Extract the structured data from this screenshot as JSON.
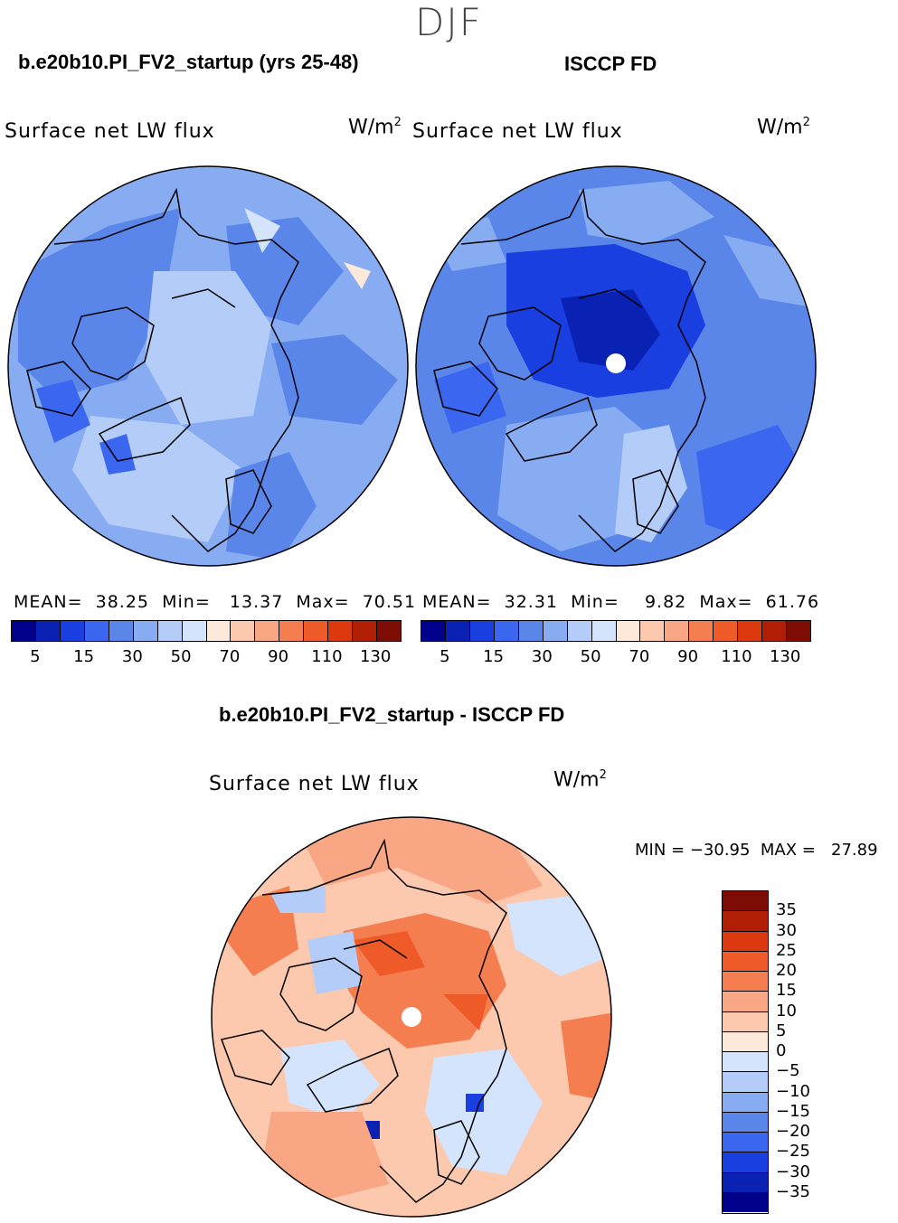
{
  "season": "DJF",
  "panels": {
    "model": {
      "title": "b.e20b10.PI_FV2_startup (yrs 25-48)",
      "variable": "Surface net LW flux",
      "units": "W/m",
      "units_sup": "2",
      "stats": {
        "mean_label": "MEAN=",
        "mean": "38.25",
        "min_label": "Min=",
        "min": "13.37",
        "max_label": "Max=",
        "max": "70.51"
      }
    },
    "obs": {
      "title": "ISCCP FD",
      "variable": "Surface net LW flux",
      "units": "W/m",
      "units_sup": "2",
      "stats": {
        "mean_label": "MEAN=",
        "mean": "32.31",
        "min_label": "Min=",
        "min": "9.82",
        "max_label": "Max=",
        "max": "61.76"
      }
    },
    "diff": {
      "title": "b.e20b10.PI_FV2_startup - ISCCP FD",
      "variable": "Surface net LW flux",
      "units": "W/m",
      "units_sup": "2",
      "minmax": "MIN = −30.95  MAX =   27.89"
    }
  },
  "colorbar_main": {
    "colors": [
      "#00008b",
      "#0a22b4",
      "#1a3fe0",
      "#3a66f0",
      "#5a86ea",
      "#88acf2",
      "#b4cdf8",
      "#d4e4fc",
      "#fde9da",
      "#fcc8ae",
      "#f9a684",
      "#f57e50",
      "#ee5a28",
      "#dc3a0e",
      "#b01e06",
      "#7c0c04"
    ],
    "ticks": [
      "5",
      "15",
      "30",
      "50",
      "70",
      "90",
      "110",
      "130"
    ]
  },
  "colorbar_diff": {
    "colors": [
      "#7c0c04",
      "#b01e06",
      "#dc3a0e",
      "#ee5a28",
      "#f57e50",
      "#f9a684",
      "#fcc8ae",
      "#fde9da",
      "#d4e4fc",
      "#b4cdf8",
      "#88acf2",
      "#5a86ea",
      "#3a66f0",
      "#1a3fe0",
      "#0a22b4",
      "#00008b"
    ],
    "ticks": [
      "35",
      "30",
      "25",
      "20",
      "15",
      "10",
      "5",
      "0",
      "−5",
      "−10",
      "−15",
      "−20",
      "−25",
      "−30",
      "−35"
    ]
  },
  "chart_data": [
    {
      "type": "heatmap",
      "title": "Surface net LW flux",
      "subtitle": "b.e20b10.PI_FV2_startup (yrs 25-48)",
      "units": "W/m2",
      "mean": 38.25,
      "min": 13.37,
      "max": 70.51,
      "levels": [
        5,
        15,
        30,
        50,
        70,
        90,
        110,
        130
      ]
    },
    {
      "type": "heatmap",
      "title": "Surface net LW flux",
      "subtitle": "ISCCP FD",
      "units": "W/m2",
      "mean": 32.31,
      "min": 9.82,
      "max": 61.76,
      "levels": [
        5,
        15,
        30,
        50,
        70,
        90,
        110,
        130
      ]
    },
    {
      "type": "heatmap",
      "title": "Surface net LW flux",
      "subtitle": "b.e20b10.PI_FV2_startup - ISCCP FD",
      "units": "W/m2",
      "min": -30.95,
      "max": 27.89,
      "levels": [
        -35,
        -30,
        -25,
        -20,
        -15,
        -10,
        -5,
        0,
        5,
        10,
        15,
        20,
        25,
        30,
        35
      ]
    }
  ]
}
